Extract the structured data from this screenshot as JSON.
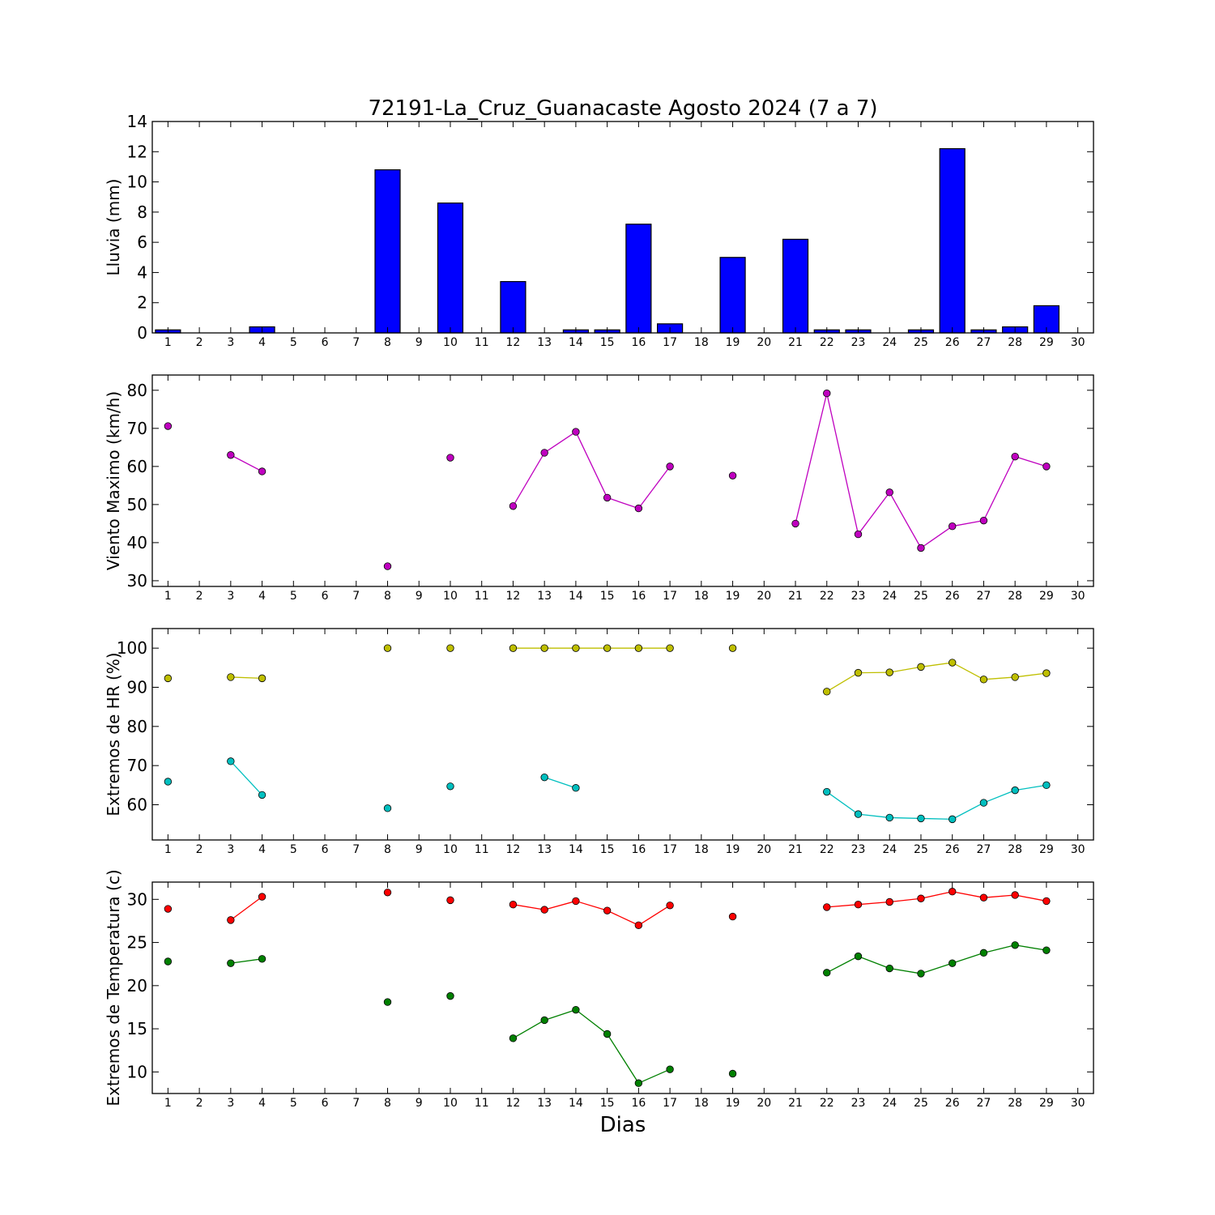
{
  "title": "72191-La_Cruz_Guanacaste Agosto 2024  (7 a 7)",
  "xlabel": "Dias",
  "chart_data": [
    {
      "type": "bar",
      "ylabel": "Lluvia (mm)",
      "ylim": [
        0,
        14
      ],
      "yticks": [
        0,
        2,
        4,
        6,
        8,
        10,
        12,
        14
      ],
      "xlim": [
        0.5,
        30.5
      ],
      "xticks": [
        1,
        2,
        3,
        4,
        5,
        6,
        7,
        8,
        9,
        10,
        11,
        12,
        13,
        14,
        15,
        16,
        17,
        18,
        19,
        20,
        21,
        22,
        23,
        24,
        25,
        26,
        27,
        28,
        29,
        30
      ],
      "colors": {
        "bar": "#0000ff"
      },
      "series": [
        {
          "x": [
            1,
            2,
            3,
            4,
            5,
            6,
            7,
            8,
            9,
            10,
            11,
            12,
            13,
            14,
            15,
            16,
            17,
            18,
            19,
            20,
            21,
            22,
            23,
            24,
            25,
            26,
            27,
            28,
            29
          ],
          "values": [
            0.2,
            0,
            0,
            0.4,
            0,
            0,
            0,
            10.8,
            0,
            8.6,
            0,
            3.4,
            0,
            0.2,
            0.2,
            7.2,
            0.6,
            0,
            5.0,
            0,
            6.2,
            0.2,
            0.2,
            0,
            0.2,
            12.2,
            0.2,
            0.4,
            1.8
          ]
        }
      ]
    },
    {
      "type": "line",
      "ylabel": "Viento Maximo (km/h)",
      "ylim": [
        28.5,
        84
      ],
      "yticks": [
        30,
        40,
        50,
        60,
        70,
        80
      ],
      "xlim": [
        0.5,
        30.5
      ],
      "xticks": [
        1,
        2,
        3,
        4,
        5,
        6,
        7,
        8,
        9,
        10,
        11,
        12,
        13,
        14,
        15,
        16,
        17,
        18,
        19,
        20,
        21,
        22,
        23,
        24,
        25,
        26,
        27,
        28,
        29,
        30
      ],
      "series": [
        {
          "color": "#bf00bf",
          "points": [
            [
              1,
              70.6
            ],
            [
              2,
              null
            ],
            [
              3,
              63.0
            ],
            [
              4,
              58.7
            ],
            [
              5,
              null
            ],
            [
              6,
              null
            ],
            [
              7,
              null
            ],
            [
              8,
              33.8
            ],
            [
              9,
              null
            ],
            [
              10,
              62.3
            ],
            [
              11,
              null
            ],
            [
              12,
              49.6
            ],
            [
              13,
              63.6
            ],
            [
              14,
              69.1
            ],
            [
              15,
              51.8
            ],
            [
              16,
              49.0
            ],
            [
              17,
              60.0
            ],
            [
              18,
              null
            ],
            [
              19,
              57.6
            ],
            [
              20,
              null
            ],
            [
              21,
              45.0
            ],
            [
              22,
              79.2
            ],
            [
              23,
              42.2
            ],
            [
              24,
              53.2
            ],
            [
              25,
              38.6
            ],
            [
              26,
              44.3
            ],
            [
              27,
              45.8
            ],
            [
              28,
              62.6
            ],
            [
              29,
              60.0
            ]
          ]
        }
      ]
    },
    {
      "type": "line",
      "ylabel": "Extremos de HR (%)",
      "ylim": [
        51,
        105
      ],
      "yticks": [
        60,
        70,
        80,
        90,
        100
      ],
      "xlim": [
        0.5,
        30.5
      ],
      "xticks": [
        1,
        2,
        3,
        4,
        5,
        6,
        7,
        8,
        9,
        10,
        11,
        12,
        13,
        14,
        15,
        16,
        17,
        18,
        19,
        20,
        21,
        22,
        23,
        24,
        25,
        26,
        27,
        28,
        29,
        30
      ],
      "series": [
        {
          "color": "#bfbf00",
          "points": [
            [
              1,
              92.3
            ],
            [
              2,
              null
            ],
            [
              3,
              92.6
            ],
            [
              4,
              92.3
            ],
            [
              5,
              null
            ],
            [
              6,
              null
            ],
            [
              7,
              null
            ],
            [
              8,
              100
            ],
            [
              9,
              null
            ],
            [
              10,
              100
            ],
            [
              11,
              null
            ],
            [
              12,
              100
            ],
            [
              13,
              100
            ],
            [
              14,
              100
            ],
            [
              15,
              100
            ],
            [
              16,
              100
            ],
            [
              17,
              100
            ],
            [
              18,
              null
            ],
            [
              19,
              100
            ],
            [
              20,
              null
            ],
            [
              21,
              null
            ],
            [
              22,
              88.9
            ],
            [
              23,
              93.7
            ],
            [
              24,
              93.8
            ],
            [
              25,
              95.2
            ],
            [
              26,
              96.3
            ],
            [
              27,
              92.0
            ],
            [
              28,
              92.6
            ],
            [
              29,
              93.6
            ]
          ]
        },
        {
          "color": "#00bfbf",
          "points": [
            [
              1,
              65.9
            ],
            [
              2,
              null
            ],
            [
              3,
              71.1
            ],
            [
              4,
              62.5
            ],
            [
              5,
              null
            ],
            [
              6,
              null
            ],
            [
              7,
              null
            ],
            [
              8,
              59.1
            ],
            [
              9,
              null
            ],
            [
              10,
              64.7
            ],
            [
              11,
              null
            ],
            [
              12,
              null
            ],
            [
              13,
              67.0
            ],
            [
              14,
              64.3
            ],
            [
              15,
              null
            ],
            [
              16,
              null
            ],
            [
              17,
              null
            ],
            [
              18,
              null
            ],
            [
              19,
              null
            ],
            [
              20,
              null
            ],
            [
              21,
              null
            ],
            [
              22,
              63.3
            ],
            [
              23,
              57.6
            ],
            [
              24,
              56.7
            ],
            [
              25,
              56.5
            ],
            [
              26,
              56.3
            ],
            [
              27,
              60.5
            ],
            [
              28,
              63.7
            ],
            [
              29,
              65.0
            ]
          ]
        }
      ]
    },
    {
      "type": "line",
      "ylabel": "Extremos de Temperatura (c)",
      "ylim": [
        7.5,
        32
      ],
      "yticks": [
        10,
        15,
        20,
        25,
        30
      ],
      "xlim": [
        0.5,
        30.5
      ],
      "xticks": [
        1,
        2,
        3,
        4,
        5,
        6,
        7,
        8,
        9,
        10,
        11,
        12,
        13,
        14,
        15,
        16,
        17,
        18,
        19,
        20,
        21,
        22,
        23,
        24,
        25,
        26,
        27,
        28,
        29,
        30
      ],
      "series": [
        {
          "color": "#ff0000",
          "points": [
            [
              1,
              28.9
            ],
            [
              2,
              null
            ],
            [
              3,
              27.6
            ],
            [
              4,
              30.3
            ],
            [
              5,
              null
            ],
            [
              6,
              null
            ],
            [
              7,
              null
            ],
            [
              8,
              30.8
            ],
            [
              9,
              null
            ],
            [
              10,
              29.9
            ],
            [
              11,
              null
            ],
            [
              12,
              29.4
            ],
            [
              13,
              28.8
            ],
            [
              14,
              29.8
            ],
            [
              15,
              28.7
            ],
            [
              16,
              27.0
            ],
            [
              17,
              29.3
            ],
            [
              18,
              null
            ],
            [
              19,
              28.0
            ],
            [
              20,
              null
            ],
            [
              21,
              null
            ],
            [
              22,
              29.1
            ],
            [
              23,
              29.4
            ],
            [
              24,
              29.7
            ],
            [
              25,
              30.1
            ],
            [
              26,
              30.9
            ],
            [
              27,
              30.2
            ],
            [
              28,
              30.5
            ],
            [
              29,
              29.8
            ]
          ]
        },
        {
          "color": "#008000",
          "points": [
            [
              1,
              22.8
            ],
            [
              2,
              null
            ],
            [
              3,
              22.6
            ],
            [
              4,
              23.1
            ],
            [
              5,
              null
            ],
            [
              6,
              null
            ],
            [
              7,
              null
            ],
            [
              8,
              18.1
            ],
            [
              9,
              null
            ],
            [
              10,
              18.8
            ],
            [
              11,
              null
            ],
            [
              12,
              13.9
            ],
            [
              13,
              16.0
            ],
            [
              14,
              17.2
            ],
            [
              15,
              14.4
            ],
            [
              16,
              8.7
            ],
            [
              17,
              10.3
            ],
            [
              18,
              null
            ],
            [
              19,
              9.8
            ],
            [
              20,
              null
            ],
            [
              21,
              null
            ],
            [
              22,
              21.5
            ],
            [
              23,
              23.4
            ],
            [
              24,
              22.0
            ],
            [
              25,
              21.4
            ],
            [
              26,
              22.6
            ],
            [
              27,
              23.8
            ],
            [
              28,
              24.7
            ],
            [
              29,
              24.1
            ]
          ]
        }
      ]
    }
  ]
}
